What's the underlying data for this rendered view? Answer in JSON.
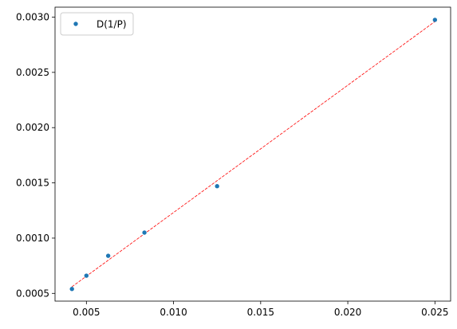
{
  "chart_data": {
    "type": "scatter",
    "title": "",
    "xlabel": "",
    "ylabel": "",
    "xlim": [
      0.0032,
      0.0259
    ],
    "ylim": [
      0.00043,
      0.00309
    ],
    "x_ticks": [
      0.005,
      0.01,
      0.015,
      0.02,
      0.025
    ],
    "x_tick_labels": [
      "0.005",
      "0.010",
      "0.015",
      "0.020",
      "0.025"
    ],
    "y_ticks": [
      0.0005,
      0.001,
      0.0015,
      0.002,
      0.0025,
      0.003
    ],
    "y_tick_labels": [
      "0.0005",
      "0.0010",
      "0.0015",
      "0.0020",
      "0.0025",
      "0.0030"
    ],
    "grid": false,
    "legend_position": "top-left",
    "series": [
      {
        "name": "D(1/P)",
        "color": "#1f77b4",
        "points": [
          {
            "x": 0.00417,
            "y": 0.00054
          },
          {
            "x": 0.005,
            "y": 0.00066
          },
          {
            "x": 0.00625,
            "y": 0.00084
          },
          {
            "x": 0.00833,
            "y": 0.00105
          },
          {
            "x": 0.0125,
            "y": 0.00147
          },
          {
            "x": 0.025,
            "y": 0.002975
          }
        ]
      }
    ],
    "fit_line": {
      "color": "#ff0000",
      "style": "dashed",
      "x": [
        0.00417,
        0.025
      ],
      "y": [
        0.00056,
        0.00296
      ]
    }
  }
}
